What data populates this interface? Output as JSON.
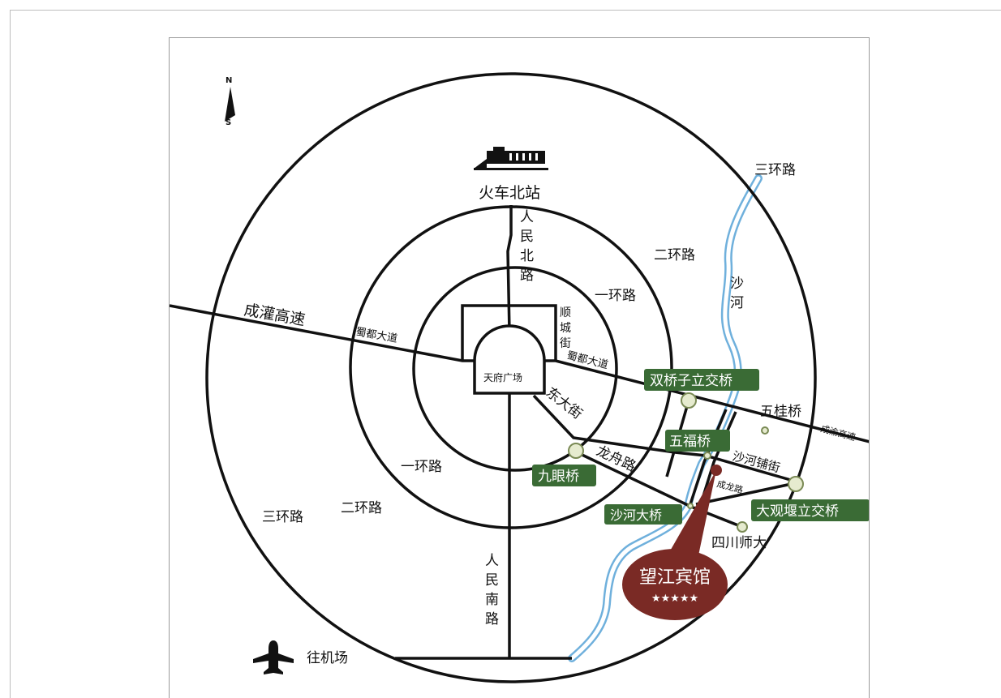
{
  "compass": {
    "north": "N",
    "south": "S"
  },
  "hotel": {
    "name": "望江宾馆",
    "stars": "★★★★★"
  },
  "stations": {
    "train": "火车北站",
    "airport": "往机场"
  },
  "rings": {
    "first_top": "一环路",
    "first_bottom": "一环路",
    "second_top": "二环路",
    "second_bottom": "二环路",
    "third_top": "三环路",
    "third_bottom": "三环路"
  },
  "roads": {
    "chengguan": "成灌高速",
    "shudu_west": "蜀都大道",
    "shudu_east": "蜀都大道",
    "renmin_north": [
      "人",
      "民",
      "北",
      "路"
    ],
    "renmin_south": [
      "人",
      "民",
      "南",
      "路"
    ],
    "shuncheng": [
      "顺",
      "城",
      "街"
    ],
    "dongda": "东大街",
    "longzhou": "龙舟路",
    "shahepu": "沙河铺街",
    "chenglong": "成龙路",
    "chengyu": "成渝高速"
  },
  "places": {
    "tianfu": "天府广场",
    "shahe_river": [
      "沙",
      "河"
    ],
    "wuguiqiao": "五桂桥",
    "sichuan_normal": "四川师大"
  },
  "bridges": {
    "shuangqiaozi": "双桥子立交桥",
    "wufu": "五福桥",
    "jiuyan": "九眼桥",
    "shahe_bridge": "沙河大桥",
    "daguanyan": "大观堰立交桥"
  },
  "colors": {
    "road": "#111111",
    "river": "#6fb0dc",
    "tag_bg": "#3a6b35",
    "hotel_bg": "#7a2a25",
    "node_fill": "#e6ebcf"
  }
}
